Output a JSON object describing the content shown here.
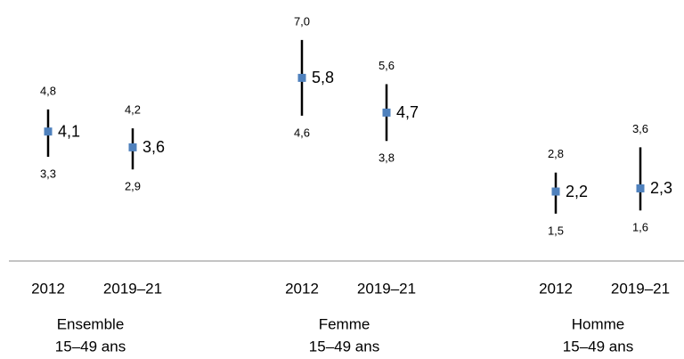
{
  "chart_data": {
    "type": "interval",
    "color": "#4f81bd",
    "ylim": [
      0,
      8
    ],
    "groups": [
      {
        "name": "Ensemble",
        "subtitle": "15–49 ans",
        "categories": [
          "2012",
          "2019–21"
        ],
        "values": [
          4.1,
          3.6
        ],
        "value_labels": [
          "4,1",
          "3,6"
        ],
        "lower": [
          3.3,
          2.9
        ],
        "lower_labels": [
          "3,3",
          "2,9"
        ],
        "upper": [
          4.8,
          4.2
        ],
        "upper_labels": [
          "4,8",
          "4,2"
        ]
      },
      {
        "name": "Femme",
        "subtitle": "15–49 ans",
        "categories": [
          "2012",
          "2019–21"
        ],
        "values": [
          5.8,
          4.7
        ],
        "value_labels": [
          "5,8",
          "4,7"
        ],
        "lower": [
          4.6,
          3.8
        ],
        "lower_labels": [
          "4,6",
          "3,8"
        ],
        "upper": [
          7.0,
          5.6
        ],
        "upper_labels": [
          "7,0",
          "5,6"
        ]
      },
      {
        "name": "Homme",
        "subtitle": "15–49 ans",
        "categories": [
          "2012",
          "2019–21"
        ],
        "values": [
          2.2,
          2.3
        ],
        "value_labels": [
          "2,2",
          "2,3"
        ],
        "lower": [
          1.5,
          1.6
        ],
        "lower_labels": [
          "1,5",
          "1,6"
        ],
        "upper": [
          2.8,
          3.6
        ],
        "upper_labels": [
          "2,8",
          "3,6"
        ]
      }
    ]
  }
}
